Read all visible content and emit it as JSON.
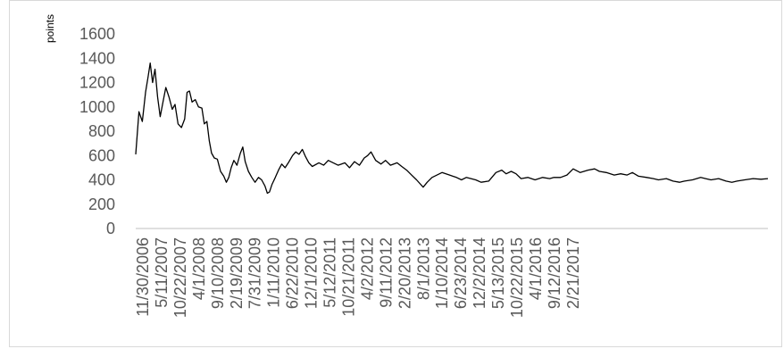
{
  "chart_data": {
    "type": "line",
    "title": "",
    "xlabel": "",
    "ylabel": "points",
    "ylim": [
      0,
      1600
    ],
    "yticks": [
      "0",
      "200",
      "400",
      "600",
      "800",
      "1000",
      "1200",
      "1400",
      "1600"
    ],
    "grid": false,
    "legend": "none",
    "line_color": "#000000",
    "x_tick_labels": [
      "11/30/2006",
      "5/11/2007",
      "10/22/2007",
      "4/1/2008",
      "9/10/2008",
      "2/19/2009",
      "7/31/2009",
      "1/11/2010",
      "6/22/2010",
      "12/1/2010",
      "5/12/2011",
      "10/21/2011",
      "4/2/2012",
      "9/11/2012",
      "2/20/2013",
      "8/1/2013",
      "1/10/2014",
      "6/23/2014",
      "12/2/2014",
      "5/13/2015",
      "10/22/2015",
      "4/1/2016",
      "9/12/2016",
      "2/21/2017"
    ],
    "series": [
      {
        "values": [
          [
            "2006-11-30",
            610
          ],
          [
            "2006-12-20",
            960
          ],
          [
            "2007-01-10",
            880
          ],
          [
            "2007-01-30",
            1120
          ],
          [
            "2007-02-15",
            1250
          ],
          [
            "2007-02-28",
            1360
          ],
          [
            "2007-03-15",
            1200
          ],
          [
            "2007-03-30",
            1310
          ],
          [
            "2007-04-15",
            1080
          ],
          [
            "2007-05-01",
            920
          ],
          [
            "2007-05-20",
            1050
          ],
          [
            "2007-06-05",
            1160
          ],
          [
            "2007-06-25",
            1080
          ],
          [
            "2007-07-15",
            980
          ],
          [
            "2007-08-01",
            1020
          ],
          [
            "2007-08-20",
            860
          ],
          [
            "2007-09-10",
            830
          ],
          [
            "2007-09-30",
            900
          ],
          [
            "2007-10-15",
            1120
          ],
          [
            "2007-10-30",
            1130
          ],
          [
            "2007-11-15",
            1040
          ],
          [
            "2007-12-05",
            1060
          ],
          [
            "2007-12-25",
            1000
          ],
          [
            "2008-01-15",
            990
          ],
          [
            "2008-01-30",
            860
          ],
          [
            "2008-02-15",
            880
          ],
          [
            "2008-03-01",
            720
          ],
          [
            "2008-03-15",
            620
          ],
          [
            "2008-04-01",
            580
          ],
          [
            "2008-04-20",
            570
          ],
          [
            "2008-05-10",
            470
          ],
          [
            "2008-05-30",
            430
          ],
          [
            "2008-06-15",
            380
          ],
          [
            "2008-06-30",
            420
          ],
          [
            "2008-07-15",
            500
          ],
          [
            "2008-08-01",
            560
          ],
          [
            "2008-08-20",
            520
          ],
          [
            "2008-09-10",
            620
          ],
          [
            "2008-09-25",
            670
          ],
          [
            "2008-10-10",
            550
          ],
          [
            "2008-10-30",
            470
          ],
          [
            "2008-11-20",
            420
          ],
          [
            "2008-12-10",
            380
          ],
          [
            "2009-01-01",
            420
          ],
          [
            "2009-01-20",
            400
          ],
          [
            "2009-02-10",
            350
          ],
          [
            "2009-02-25",
            290
          ],
          [
            "2009-03-10",
            300
          ],
          [
            "2009-03-25",
            360
          ],
          [
            "2009-04-15",
            420
          ],
          [
            "2009-05-05",
            480
          ],
          [
            "2009-05-25",
            530
          ],
          [
            "2009-06-15",
            500
          ],
          [
            "2009-07-05",
            540
          ],
          [
            "2009-07-31",
            600
          ],
          [
            "2009-08-20",
            630
          ],
          [
            "2009-09-10",
            610
          ],
          [
            "2009-09-30",
            650
          ],
          [
            "2009-10-20",
            590
          ],
          [
            "2009-11-10",
            540
          ],
          [
            "2009-12-01",
            510
          ],
          [
            "2010-01-11",
            540
          ],
          [
            "2010-02-10",
            520
          ],
          [
            "2010-03-10",
            560
          ],
          [
            "2010-04-10",
            540
          ],
          [
            "2010-05-10",
            520
          ],
          [
            "2010-06-22",
            540
          ],
          [
            "2010-07-20",
            500
          ],
          [
            "2010-08-20",
            550
          ],
          [
            "2010-09-20",
            520
          ],
          [
            "2010-10-20",
            580
          ],
          [
            "2010-11-10",
            600
          ],
          [
            "2010-12-01",
            630
          ],
          [
            "2010-12-30",
            560
          ],
          [
            "2011-02-01",
            530
          ],
          [
            "2011-03-01",
            560
          ],
          [
            "2011-04-01",
            520
          ],
          [
            "2011-05-12",
            540
          ],
          [
            "2011-06-10",
            510
          ],
          [
            "2011-07-10",
            480
          ],
          [
            "2011-08-10",
            440
          ],
          [
            "2011-09-10",
            400
          ],
          [
            "2011-10-21",
            340
          ],
          [
            "2011-11-15",
            380
          ],
          [
            "2011-12-15",
            420
          ],
          [
            "2012-01-15",
            440
          ],
          [
            "2012-02-15",
            460
          ],
          [
            "2012-04-02",
            440
          ],
          [
            "2012-05-15",
            420
          ],
          [
            "2012-06-15",
            400
          ],
          [
            "2012-07-15",
            420
          ],
          [
            "2012-09-11",
            400
          ],
          [
            "2012-10-15",
            380
          ],
          [
            "2012-12-01",
            390
          ],
          [
            "2013-01-15",
            460
          ],
          [
            "2013-02-20",
            480
          ],
          [
            "2013-03-20",
            450
          ],
          [
            "2013-04-20",
            470
          ],
          [
            "2013-05-20",
            450
          ],
          [
            "2013-06-20",
            410
          ],
          [
            "2013-08-01",
            420
          ],
          [
            "2013-09-15",
            400
          ],
          [
            "2013-11-01",
            420
          ],
          [
            "2013-12-15",
            410
          ],
          [
            "2014-01-10",
            420
          ],
          [
            "2014-02-20",
            420
          ],
          [
            "2014-04-01",
            440
          ],
          [
            "2014-05-10",
            490
          ],
          [
            "2014-06-23",
            460
          ],
          [
            "2014-08-10",
            480
          ],
          [
            "2014-09-20",
            490
          ],
          [
            "2014-10-20",
            470
          ],
          [
            "2014-12-02",
            460
          ],
          [
            "2015-01-20",
            440
          ],
          [
            "2015-03-01",
            450
          ],
          [
            "2015-04-10",
            440
          ],
          [
            "2015-05-13",
            460
          ],
          [
            "2015-06-20",
            430
          ],
          [
            "2015-08-10",
            420
          ],
          [
            "2015-09-20",
            410
          ],
          [
            "2015-10-22",
            400
          ],
          [
            "2015-12-10",
            410
          ],
          [
            "2016-01-20",
            390
          ],
          [
            "2016-03-01",
            380
          ],
          [
            "2016-04-01",
            390
          ],
          [
            "2016-05-20",
            400
          ],
          [
            "2016-07-10",
            420
          ],
          [
            "2016-08-10",
            410
          ],
          [
            "2016-09-12",
            400
          ],
          [
            "2016-10-30",
            410
          ],
          [
            "2016-12-15",
            390
          ],
          [
            "2017-01-20",
            380
          ],
          [
            "2017-02-21",
            390
          ],
          [
            "2017-04-10",
            400
          ],
          [
            "2017-06-01",
            410
          ],
          [
            "2017-07-20",
            405
          ],
          [
            "2017-09-01",
            410
          ]
        ]
      }
    ]
  }
}
